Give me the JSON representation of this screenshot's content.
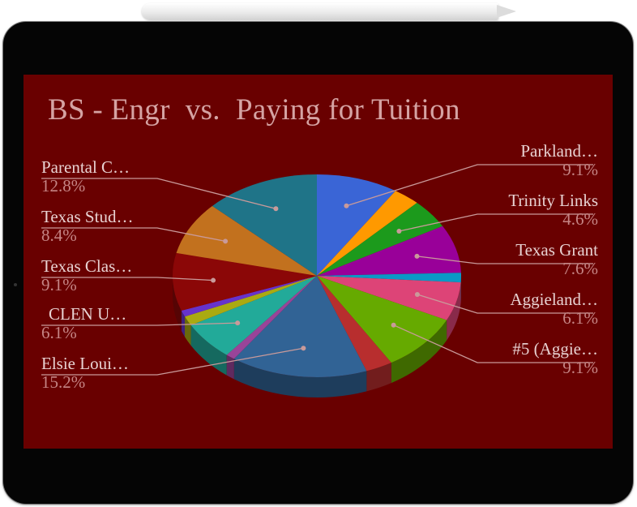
{
  "chart_data": {
    "type": "pie",
    "title": "BS - Engr  vs.  Paying for Tuition",
    "slices": [
      {
        "label": "Parkland…",
        "value": 9.1,
        "pct_label": "9.1%",
        "color": "#3a65d6"
      },
      {
        "label": "",
        "value": 3.0,
        "pct_label": "",
        "color": "#ff9900"
      },
      {
        "label": "Trinity Links",
        "value": 4.6,
        "pct_label": "4.6%",
        "color": "#1c9a1c"
      },
      {
        "label": "Texas Grant",
        "value": 7.6,
        "pct_label": "7.6%",
        "color": "#990099"
      },
      {
        "label": "",
        "value": 1.5,
        "pct_label": "",
        "color": "#0a99c6"
      },
      {
        "label": "Aggieland…",
        "value": 6.1,
        "pct_label": "6.1%",
        "color": "#dd4477"
      },
      {
        "label": "#5 (Aggie…",
        "value": 9.1,
        "pct_label": "9.1%",
        "color": "#66aa00"
      },
      {
        "label": "",
        "value": 3.0,
        "pct_label": "",
        "color": "#b82e2e"
      },
      {
        "label": "Elsie Loui…",
        "value": 15.2,
        "pct_label": "15.2%",
        "color": "#316395"
      },
      {
        "label": "",
        "value": 1.0,
        "pct_label": "",
        "color": "#994499"
      },
      {
        "label": "CLEN U…",
        "value": 6.1,
        "pct_label": "6.1%",
        "color": "#22aa99"
      },
      {
        "label": "",
        "value": 1.5,
        "pct_label": "",
        "color": "#aaaa11"
      },
      {
        "label": "",
        "value": 1.0,
        "pct_label": "",
        "color": "#6633cc"
      },
      {
        "label": "Texas Clas…",
        "value": 9.1,
        "pct_label": "9.1%",
        "color": "#8b0707"
      },
      {
        "label": "Texas Stud…",
        "value": 8.4,
        "pct_label": "8.4%",
        "color": "#c2711e"
      },
      {
        "label": "Parental C…",
        "value": 12.8,
        "pct_label": "12.8%",
        "color": "#1f7488"
      }
    ],
    "legend": "callout labels around pie"
  }
}
